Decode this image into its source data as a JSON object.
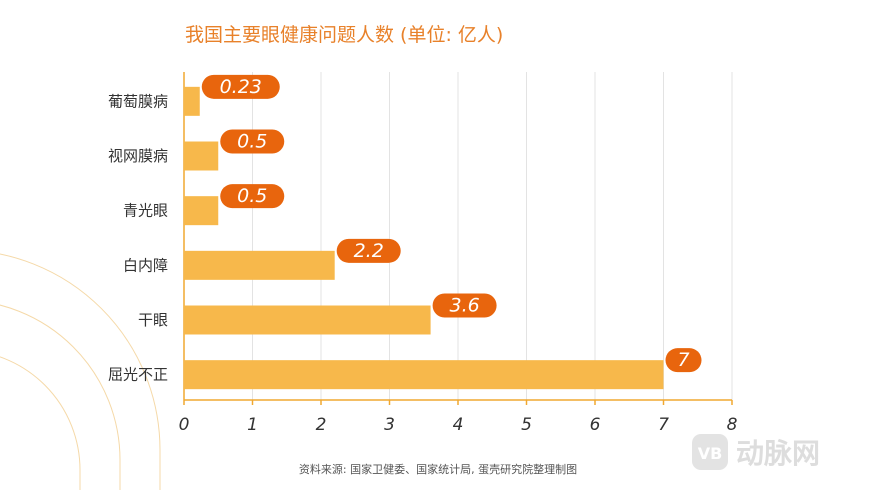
{
  "title": "我国主要眼健康问题人数 (单位: 亿人)",
  "source": "资料来源: 国家卫健委、国家统计局, 蛋壳研究院整理制图",
  "watermark": "动脉网",
  "colors": {
    "bar": "#f7b84b",
    "label_bg": "#e8650d",
    "title": "#e8812a",
    "axis": "#f0a830",
    "grid": "#e3e3e3",
    "decor": "#f5d9a8"
  },
  "chart_data": {
    "type": "bar",
    "orientation": "horizontal",
    "categories": [
      "葡萄膜病",
      "视网膜病",
      "青光眼",
      "白内障",
      "干眼",
      "屈光不正"
    ],
    "values": [
      0.23,
      0.5,
      0.5,
      2.2,
      3.6,
      7
    ],
    "value_labels": [
      "0.23",
      "0.5",
      "0.5",
      "2.2",
      "3.6",
      "7"
    ],
    "xlim": [
      0,
      8
    ],
    "xticks": [
      "0",
      "1",
      "2",
      "3",
      "4",
      "5",
      "6",
      "7",
      "8"
    ],
    "grid": "vertical",
    "xlabel": "",
    "ylabel": ""
  }
}
